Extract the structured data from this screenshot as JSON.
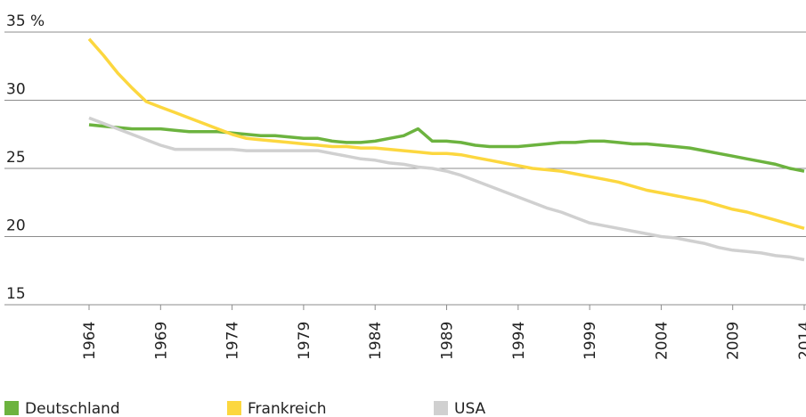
{
  "chart_data": {
    "type": "line",
    "x": [
      1964,
      1965,
      1966,
      1967,
      1968,
      1969,
      1970,
      1971,
      1972,
      1973,
      1974,
      1975,
      1976,
      1977,
      1978,
      1979,
      1980,
      1981,
      1982,
      1983,
      1984,
      1985,
      1986,
      1987,
      1988,
      1989,
      1990,
      1991,
      1992,
      1993,
      1994,
      1995,
      1996,
      1997,
      1998,
      1999,
      2000,
      2001,
      2002,
      2003,
      2004,
      2005,
      2006,
      2007,
      2008,
      2009,
      2010,
      2011,
      2012,
      2013,
      2014
    ],
    "xlim": [
      1964,
      2014
    ],
    "xticks": [
      1964,
      1969,
      1974,
      1979,
      1984,
      1989,
      1994,
      1999,
      2004,
      2009,
      2014
    ],
    "ylim": [
      15,
      35
    ],
    "yticks": [
      15,
      20,
      25,
      30,
      {
        "value": 35,
        "label": "35 %"
      }
    ],
    "grid": true,
    "legend": "bottom",
    "series": [
      {
        "name": "Deutschland",
        "color": "#6cb33f",
        "values": [
          28.2,
          28.1,
          28.0,
          27.9,
          27.9,
          27.9,
          27.8,
          27.7,
          27.7,
          27.7,
          27.6,
          27.5,
          27.4,
          27.4,
          27.3,
          27.2,
          27.2,
          27.0,
          26.9,
          26.9,
          27.0,
          27.2,
          27.4,
          27.9,
          27.0,
          27.0,
          26.9,
          26.7,
          26.6,
          26.6,
          26.6,
          26.7,
          26.8,
          26.9,
          26.9,
          27.0,
          27.0,
          26.9,
          26.8,
          26.8,
          26.7,
          26.6,
          26.5,
          26.3,
          26.1,
          25.9,
          25.7,
          25.5,
          25.3,
          25.0,
          24.8
        ]
      },
      {
        "name": "Frankreich",
        "color": "#fcd73f",
        "values": [
          34.5,
          33.3,
          32.0,
          30.9,
          29.9,
          29.5,
          29.1,
          28.7,
          28.3,
          27.9,
          27.5,
          27.2,
          27.1,
          27.0,
          26.9,
          26.8,
          26.7,
          26.6,
          26.6,
          26.5,
          26.5,
          26.4,
          26.3,
          26.2,
          26.1,
          26.1,
          26.0,
          25.8,
          25.6,
          25.4,
          25.2,
          25.0,
          24.9,
          24.8,
          24.6,
          24.4,
          24.2,
          24.0,
          23.7,
          23.4,
          23.2,
          23.0,
          22.8,
          22.6,
          22.3,
          22.0,
          21.8,
          21.5,
          21.2,
          20.9,
          20.6
        ]
      },
      {
        "name": "USA",
        "color": "#d0d0d0",
        "values": [
          28.7,
          28.3,
          27.9,
          27.5,
          27.1,
          26.7,
          26.4,
          26.4,
          26.4,
          26.4,
          26.4,
          26.3,
          26.3,
          26.3,
          26.3,
          26.3,
          26.3,
          26.1,
          25.9,
          25.7,
          25.6,
          25.4,
          25.3,
          25.1,
          25.0,
          24.8,
          24.5,
          24.1,
          23.7,
          23.3,
          22.9,
          22.5,
          22.1,
          21.8,
          21.4,
          21.0,
          20.8,
          20.6,
          20.4,
          20.2,
          20.0,
          19.9,
          19.7,
          19.5,
          19.2,
          19.0,
          18.9,
          18.8,
          18.6,
          18.5,
          18.3
        ]
      }
    ]
  }
}
